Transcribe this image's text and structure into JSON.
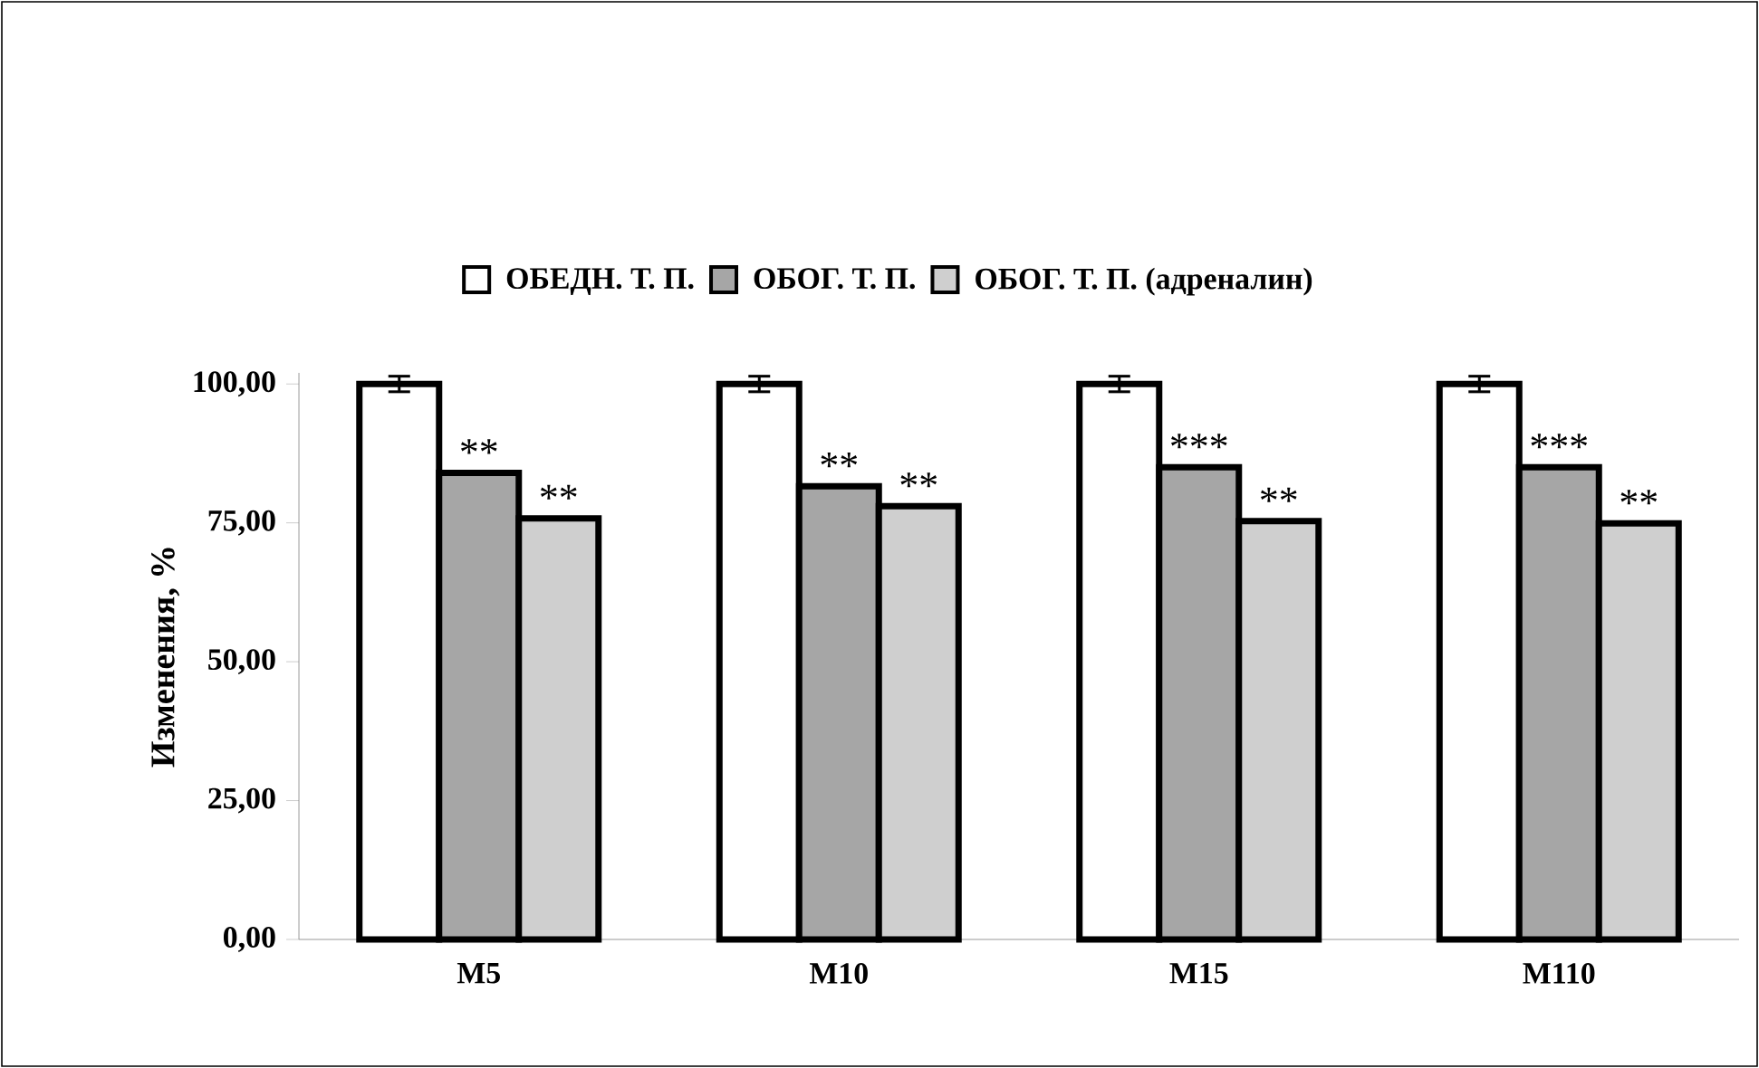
{
  "chart_data": {
    "type": "bar",
    "ylabel": "Изменения, %",
    "categories": [
      "M5",
      "M10",
      "M15",
      "M110"
    ],
    "series": [
      {
        "name": "ОБЕДН. Т. П.",
        "color": "#ffffff",
        "values": [
          100,
          100,
          100,
          100
        ],
        "errors": [
          1.4,
          1.4,
          1.4,
          1.4
        ]
      },
      {
        "name": "ОБОГ. Т. П.",
        "color": "#a6a6a6",
        "values": [
          84.0,
          81.6,
          85.0,
          85.0
        ]
      },
      {
        "name": "ОБОГ. Т. П. (адреналин)",
        "color": "#cfcfcf",
        "values": [
          75.8,
          78.0,
          75.3,
          74.9
        ]
      }
    ],
    "ylim": [
      0,
      102
    ],
    "yticks": [
      {
        "value": 0,
        "label": "0,00"
      },
      {
        "value": 25,
        "label": "25,00"
      },
      {
        "value": 50,
        "label": "50,00"
      },
      {
        "value": 75,
        "label": "75,00"
      },
      {
        "value": 100,
        "label": "100,00"
      }
    ],
    "annotations": [
      "**",
      "**",
      "**",
      "**",
      "***",
      "**",
      "***",
      "**"
    ],
    "legend": "top",
    "grid": false
  }
}
